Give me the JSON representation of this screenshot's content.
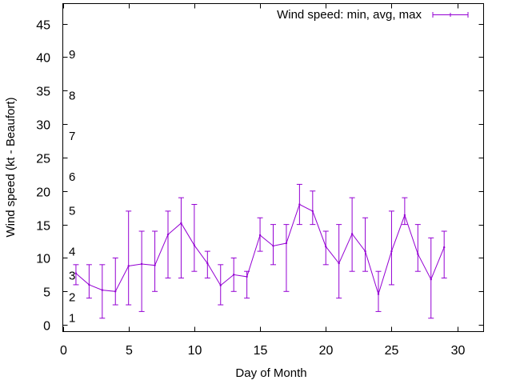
{
  "chart_data": {
    "type": "line",
    "title": "",
    "xlabel": "Day of Month",
    "ylabel": "Wind speed (kt - Beaufort)",
    "xlim": [
      0,
      32
    ],
    "ylim": [
      -1,
      48
    ],
    "xticks": [
      0,
      5,
      10,
      15,
      20,
      25,
      30
    ],
    "yticks": [
      0,
      5,
      10,
      15,
      20,
      25,
      30,
      35,
      40,
      45
    ],
    "grid": false,
    "legend_position": "top-right",
    "series_color": "#9400d3",
    "series": [
      {
        "name": "Wind speed: min, avg, max",
        "x": [
          1,
          2,
          3,
          4,
          5,
          6,
          7,
          8,
          9,
          10,
          11,
          12,
          13,
          14,
          15,
          16,
          17,
          18,
          19,
          20,
          21,
          22,
          23,
          24,
          25,
          26,
          27,
          28,
          29
        ],
        "min": [
          6,
          4,
          1,
          3,
          3,
          2,
          5,
          7,
          7,
          8,
          7,
          3,
          5,
          4,
          11,
          9,
          5,
          15,
          15,
          9,
          4,
          8,
          8,
          2,
          6,
          15,
          8,
          1,
          7
        ],
        "avg": [
          7.7,
          6,
          5.2,
          5,
          8.8,
          9.1,
          8.9,
          13.5,
          15.2,
          11.9,
          9.2,
          5.9,
          7.5,
          7.2,
          13.4,
          11.8,
          12.2,
          18,
          17,
          11.7,
          9.2,
          13.6,
          11,
          4.6,
          11,
          16.4,
          10.6,
          6.8,
          11.6
        ],
        "max": [
          9,
          9,
          9,
          10,
          17,
          14,
          14,
          17,
          19,
          18,
          11,
          9,
          10,
          8,
          16,
          15,
          15,
          21,
          20,
          14,
          15,
          19,
          16,
          8,
          17,
          19,
          15,
          13,
          14
        ]
      }
    ],
    "beaufort_labels": [
      {
        "label": "1",
        "value": 1.1
      },
      {
        "label": "2",
        "value": 4.2
      },
      {
        "label": "3",
        "value": 7.4
      },
      {
        "label": "4",
        "value": 11
      },
      {
        "label": "5",
        "value": 17.1
      },
      {
        "label": "6",
        "value": 22.2
      },
      {
        "label": "7",
        "value": 28.3
      },
      {
        "label": "8",
        "value": 34.3
      },
      {
        "label": "9",
        "value": 40.5
      }
    ]
  }
}
